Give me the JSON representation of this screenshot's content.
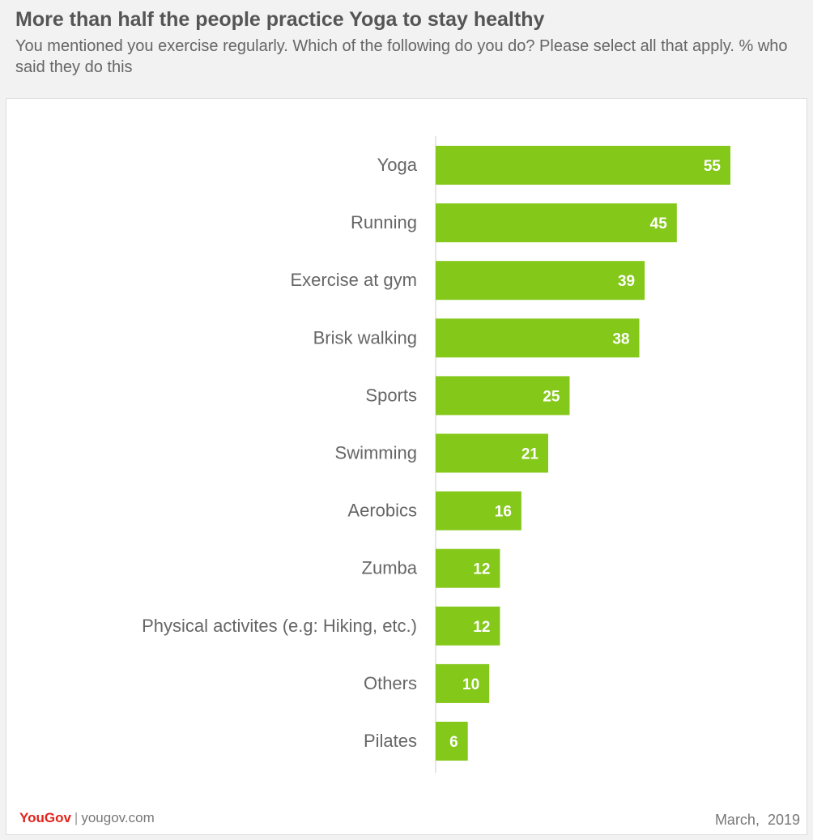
{
  "header": {
    "title": "More than half the people practice Yoga to stay healthy",
    "subtitle": "You mentioned you exercise regularly. Which of the following do you do? Please select all that apply. % who said they do this"
  },
  "footer": {
    "brand": "YouGov",
    "separator": "|",
    "site": "yougov.com",
    "date": "March,  2019"
  },
  "colors": {
    "bar": "#84c81a",
    "label": "#666666",
    "value_label": "#ffffff",
    "axis": "#cccccc"
  },
  "chart_data": {
    "type": "bar",
    "orientation": "horizontal",
    "categories": [
      "Yoga",
      "Running",
      "Exercise at gym",
      "Brisk walking",
      "Sports",
      "Swimming",
      "Aerobics",
      "Zumba",
      "Physical activites (e.g: Hiking, etc.)",
      "Others",
      "Pilates"
    ],
    "values": [
      55,
      45,
      39,
      38,
      25,
      21,
      16,
      12,
      12,
      10,
      6
    ],
    "data_labels": true,
    "xlim": [
      0,
      55
    ],
    "grid": false,
    "legend": "none"
  }
}
